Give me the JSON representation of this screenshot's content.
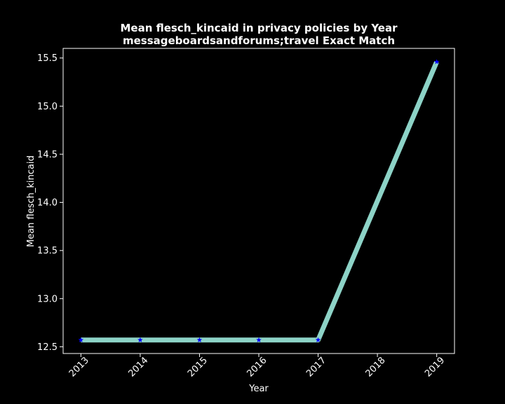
{
  "chart_data": {
    "type": "line",
    "title": "Mean flesch_kincaid in privacy policies by Year",
    "subtitle": "messageboardsandforums;travel Exact Match",
    "xlabel": "Year",
    "ylabel": "Mean flesch_kincaid",
    "x_ticks": [
      "2013",
      "2014",
      "2015",
      "2016",
      "2017",
      "2018",
      "2019"
    ],
    "y_ticks": [
      "12.5",
      "13.0",
      "13.5",
      "14.0",
      "14.5",
      "15.0",
      "15.5"
    ],
    "xlim": [
      2012.7,
      2019.3
    ],
    "ylim": [
      12.43,
      15.6
    ],
    "series": [
      {
        "x": [
          2013,
          2014,
          2015,
          2016,
          2017,
          2019
        ],
        "y": [
          12.57,
          12.57,
          12.57,
          12.57,
          12.57,
          15.46
        ],
        "line_color": "#8dd3c7",
        "marker": "star",
        "marker_color": "#0000ff"
      }
    ],
    "grid": false,
    "background": "#000000",
    "foreground": "#ffffff"
  }
}
